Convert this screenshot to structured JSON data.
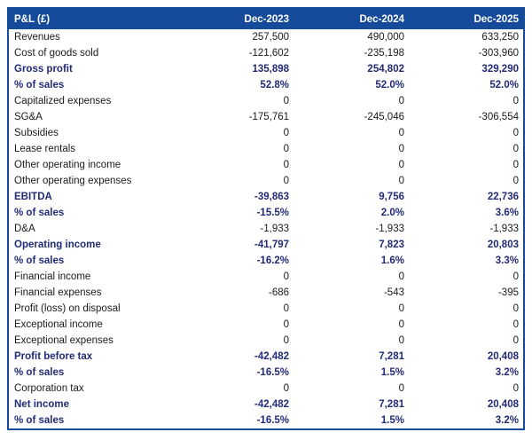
{
  "title": "P&L projection table",
  "colors": {
    "header_bg": "#164A9B",
    "border": "#164A9B",
    "bold_text": "#222B76",
    "regular_text": "#1a1a1a",
    "row_bg": "#ffffff"
  },
  "chart_data": {
    "type": "table",
    "title": "P&L (£)",
    "header": {
      "label": "P&L (£)",
      "columns": [
        "Dec-2023",
        "Dec-2024",
        "Dec-2025"
      ]
    },
    "rows": [
      {
        "label": "Revenues",
        "values": [
          "257,500",
          "490,000",
          "633,250"
        ],
        "bold": false
      },
      {
        "label": "Cost of goods sold",
        "values": [
          "-121,602",
          "-235,198",
          "-303,960"
        ],
        "bold": false
      },
      {
        "label": "Gross profit",
        "values": [
          "135,898",
          "254,802",
          "329,290"
        ],
        "bold": true
      },
      {
        "label": "% of sales",
        "values": [
          "52.8%",
          "52.0%",
          "52.0%"
        ],
        "bold": true
      },
      {
        "label": "Capitalized expenses",
        "values": [
          "0",
          "0",
          "0"
        ],
        "bold": false
      },
      {
        "label": "SG&A",
        "values": [
          "-175,761",
          "-245,046",
          "-306,554"
        ],
        "bold": false
      },
      {
        "label": "Subsidies",
        "values": [
          "0",
          "0",
          "0"
        ],
        "bold": false
      },
      {
        "label": "Lease rentals",
        "values": [
          "0",
          "0",
          "0"
        ],
        "bold": false
      },
      {
        "label": "Other operating income",
        "values": [
          "0",
          "0",
          "0"
        ],
        "bold": false
      },
      {
        "label": "Other operating expenses",
        "values": [
          "0",
          "0",
          "0"
        ],
        "bold": false
      },
      {
        "label": "EBITDA",
        "values": [
          "-39,863",
          "9,756",
          "22,736"
        ],
        "bold": true
      },
      {
        "label": "% of sales",
        "values": [
          "-15.5%",
          "2.0%",
          "3.6%"
        ],
        "bold": true
      },
      {
        "label": "D&A",
        "values": [
          "-1,933",
          "-1,933",
          "-1,933"
        ],
        "bold": false
      },
      {
        "label": "Operating income",
        "values": [
          "-41,797",
          "7,823",
          "20,803"
        ],
        "bold": true
      },
      {
        "label": "% of sales",
        "values": [
          "-16.2%",
          "1.6%",
          "3.3%"
        ],
        "bold": true
      },
      {
        "label": "Financial income",
        "values": [
          "0",
          "0",
          "0"
        ],
        "bold": false
      },
      {
        "label": "Financial expenses",
        "values": [
          "-686",
          "-543",
          "-395"
        ],
        "bold": false
      },
      {
        "label": "Profit (loss) on disposal",
        "values": [
          "0",
          "0",
          "0"
        ],
        "bold": false
      },
      {
        "label": "Exceptional income",
        "values": [
          "0",
          "0",
          "0"
        ],
        "bold": false
      },
      {
        "label": "Exceptional expenses",
        "values": [
          "0",
          "0",
          "0"
        ],
        "bold": false
      },
      {
        "label": "Profit before tax",
        "values": [
          "-42,482",
          "7,281",
          "20,408"
        ],
        "bold": true
      },
      {
        "label": "% of sales",
        "values": [
          "-16.5%",
          "1.5%",
          "3.2%"
        ],
        "bold": true
      },
      {
        "label": "Corporation tax",
        "values": [
          "0",
          "0",
          "0"
        ],
        "bold": false
      },
      {
        "label": "Net income",
        "values": [
          "-42,482",
          "7,281",
          "20,408"
        ],
        "bold": true
      },
      {
        "label": "% of sales",
        "values": [
          "-16.5%",
          "1.5%",
          "3.2%"
        ],
        "bold": true
      }
    ]
  }
}
